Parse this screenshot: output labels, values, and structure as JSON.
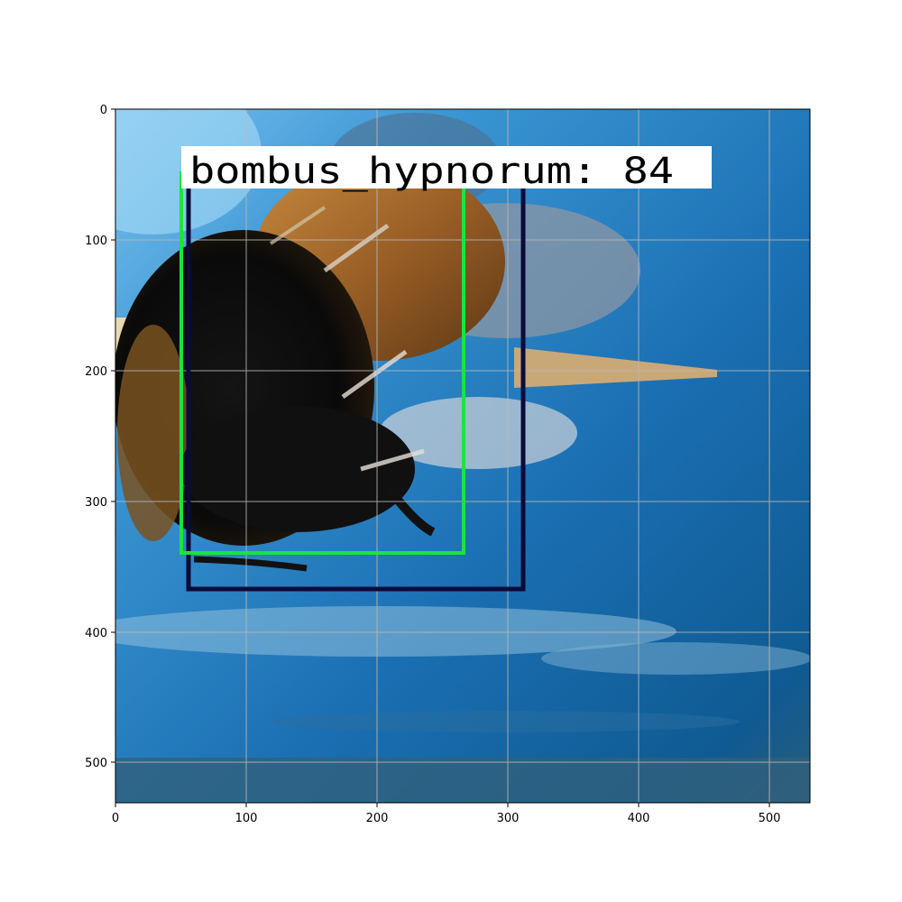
{
  "axes": {
    "x_ticks": [
      "0",
      "100",
      "200",
      "300",
      "400",
      "500"
    ],
    "y_ticks": [
      "0",
      "100",
      "200",
      "300",
      "400",
      "500"
    ],
    "xlim": [
      0,
      532
    ],
    "ylim": [
      532,
      0
    ],
    "grid": true
  },
  "image": {
    "background_colors": [
      "#5aa9df",
      "#1f74b8",
      "#0c4f86",
      "#2c5f7e"
    ],
    "subject": "bumblebee"
  },
  "detections": [
    {
      "label": "bombus_hypnorum: 84",
      "color": "#0b0b3a"
    },
    {
      "label": "",
      "color": "#18e63b"
    }
  ]
}
